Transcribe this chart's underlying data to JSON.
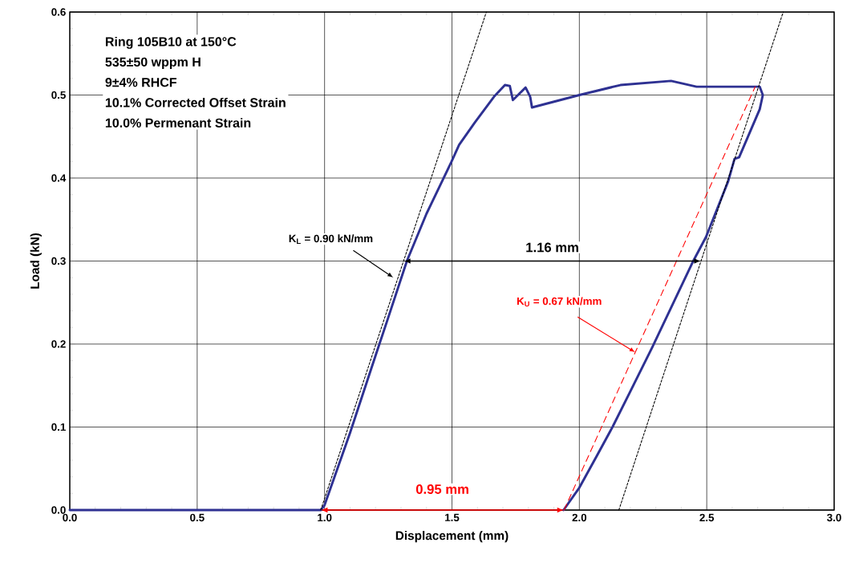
{
  "chart_data": {
    "type": "line",
    "xlabel": "Displacement (mm)",
    "ylabel": "Load (kN)",
    "xlim": [
      0,
      3
    ],
    "ylim": [
      0,
      0.6
    ],
    "xticks": [
      {
        "value": 0,
        "label": "0.0"
      },
      {
        "value": 0.5,
        "label": "0.5"
      },
      {
        "value": 1,
        "label": "1.0"
      },
      {
        "value": 1.5,
        "label": "1.5"
      },
      {
        "value": 2,
        "label": "2.0"
      },
      {
        "value": 2.5,
        "label": "2.5"
      },
      {
        "value": 3,
        "label": "3.0"
      }
    ],
    "yticks": [
      {
        "value": 0,
        "label": "0.0"
      },
      {
        "value": 0.1,
        "label": "0.1"
      },
      {
        "value": 0.2,
        "label": "0.2"
      },
      {
        "value": 0.3,
        "label": "0.3"
      },
      {
        "value": 0.4,
        "label": "0.4"
      },
      {
        "value": 0.5,
        "label": "0.5"
      },
      {
        "value": 0.6,
        "label": "0.6"
      }
    ],
    "grid": true,
    "marker": "none",
    "series": [
      {
        "type": "line",
        "color": "#2e3192",
        "line_style": "solid",
        "x": [
          0,
          0.5,
          0.985,
          1.0,
          1.1,
          1.2,
          1.25,
          1.323,
          1.4,
          1.497,
          1.528,
          1.59,
          1.665,
          1.708,
          1.727,
          1.739,
          1.789,
          1.807,
          1.814,
          1.913,
          2.0,
          2.161,
          2.36,
          2.46,
          2.708,
          2.72,
          2.708,
          2.627,
          2.609,
          2.584,
          2.497,
          2.447,
          2.286,
          2.205,
          2.13,
          2.068,
          2.0,
          1.938
        ],
        "values": [
          0,
          0,
          0,
          0.006,
          0.093,
          0.186,
          0.232,
          0.3,
          0.357,
          0.419,
          0.44,
          0.467,
          0.498,
          0.512,
          0.511,
          0.494,
          0.509,
          0.498,
          0.485,
          0.493,
          0.5,
          0.512,
          0.517,
          0.51,
          0.51,
          0.5,
          0.483,
          0.425,
          0.423,
          0.396,
          0.329,
          0.3,
          0.196,
          0.146,
          0.1,
          0.065,
          0.027,
          0.0
        ]
      },
      {
        "type": "line",
        "color": "#000000",
        "line_style": "dotted",
        "x": [
          0.985,
          1.635
        ],
        "values": [
          0,
          0.6
        ]
      },
      {
        "type": "line",
        "color": "#000000",
        "line_style": "dotted",
        "x": [
          2.155,
          2.8
        ],
        "values": [
          0,
          0.6
        ]
      },
      {
        "type": "line",
        "color": "#ff0000",
        "line_style": "dashed",
        "x": [
          1.94,
          2.69
        ],
        "values": [
          0,
          0.51
        ]
      }
    ],
    "annotations": [
      "Ring 105B10 at 150°C",
      "535±50 wppm H",
      "9±4% RHCF",
      "10.1% Corrected Offset Strain",
      "10.0% Permenant Strain",
      {
        "text": "K$_{L}$ = 0.90 kN/mm",
        "x": 1.27,
        "y": 0.28
      },
      "1.16 mm",
      {
        "text": "K$_{U}$ = 0.67 kN/mm",
        "x": 2.22,
        "y": 0.19
      },
      "0.95 mm"
    ]
  }
}
